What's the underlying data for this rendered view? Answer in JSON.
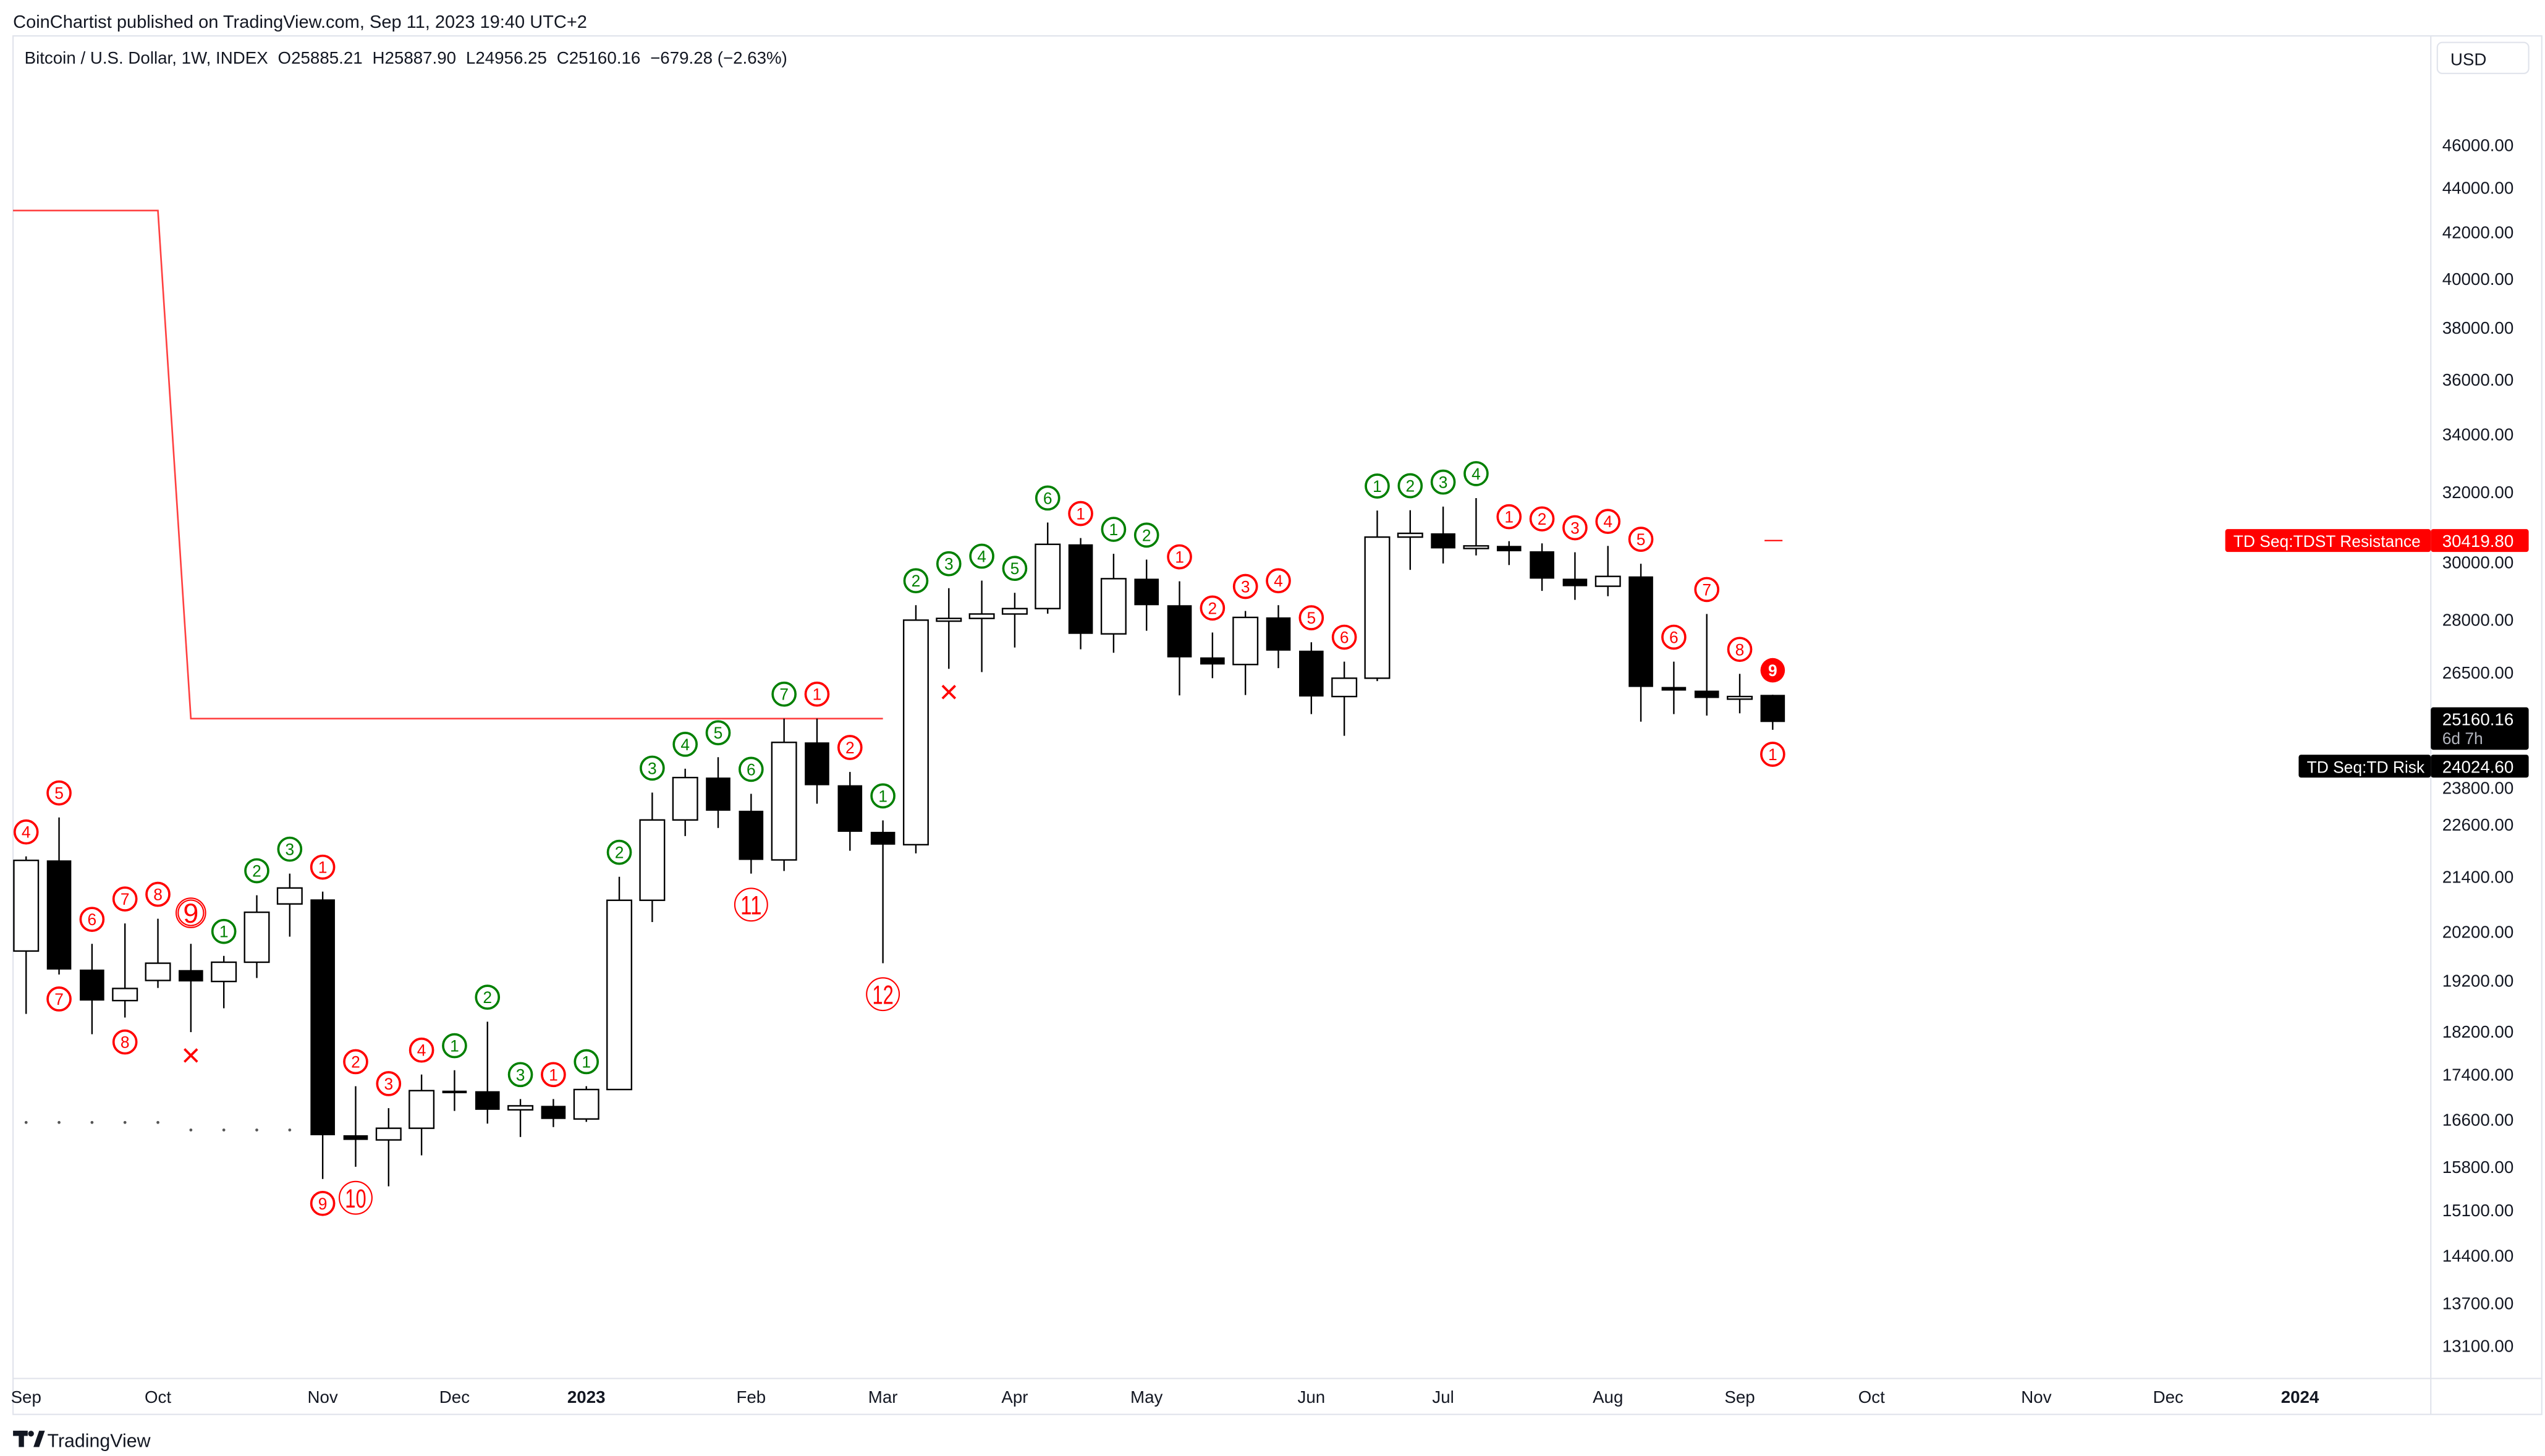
{
  "header": {
    "published": "CoinChartist published on TradingView.com, Sep 11, 2023 19:40 UTC+2",
    "symbol": "Bitcoin / U.S. Dollar, 1W, INDEX",
    "open": "O25885.21",
    "high": "H25887.90",
    "low": "L24956.25",
    "close": "C25160.16",
    "change": "−679.28 (−2.63%)",
    "currency": "USD"
  },
  "footer": {
    "brand": "TradingView"
  },
  "price_labels": {
    "tdst": {
      "name": "TD Seq:TDST Resistance",
      "value": "30419.80",
      "price": 30419.8,
      "color": "#ff0000"
    },
    "last": {
      "value": "25160.16",
      "countdown": "6d 7h",
      "price": 25160.16,
      "color": "#000000"
    },
    "risk": {
      "name": "TD Seq:TD Risk",
      "value": "24024.60",
      "price": 24024.6,
      "color": "#000000"
    }
  },
  "chart_data": {
    "type": "candlestick",
    "interval": "1W",
    "yscale": "log",
    "ylim": [
      12700,
      50500
    ],
    "grid": false,
    "colors": {
      "up_fill": "#ffffff",
      "down_fill": "#000000",
      "wick": "#000000",
      "sell_setup": "#ff0000",
      "buy_setup": "#008000"
    },
    "y_ticks": [
      "46000.00",
      "44000.00",
      "42000.00",
      "40000.00",
      "38000.00",
      "36000.00",
      "34000.00",
      "32000.00",
      "30000.00",
      "28000.00",
      "26500.00",
      "23800.00",
      "22600.00",
      "21400.00",
      "20200.00",
      "19200.00",
      "18200.00",
      "17400.00",
      "16600.00",
      "15800.00",
      "15100.00",
      "14400.00",
      "13700.00",
      "13100.00"
    ],
    "x_labels": [
      {
        "label": "Sep",
        "date": "2022-09-05",
        "bold": false
      },
      {
        "label": "Oct",
        "date": "2022-10-03",
        "bold": false
      },
      {
        "label": "Nov",
        "date": "2022-11-07",
        "bold": false
      },
      {
        "label": "Dec",
        "date": "2022-12-05",
        "bold": false
      },
      {
        "label": "2023",
        "date": "2023-01-02",
        "bold": true
      },
      {
        "label": "Feb",
        "date": "2023-02-06",
        "bold": false
      },
      {
        "label": "Mar",
        "date": "2023-03-06",
        "bold": false
      },
      {
        "label": "Apr",
        "date": "2023-04-03",
        "bold": false
      },
      {
        "label": "May",
        "date": "2023-05-01",
        "bold": false
      },
      {
        "label": "Jun",
        "date": "2023-06-05",
        "bold": false
      },
      {
        "label": "Jul",
        "date": "2023-07-03",
        "bold": false
      },
      {
        "label": "Aug",
        "date": "2023-08-07",
        "bold": false
      },
      {
        "label": "Sep",
        "date": "2023-09-04",
        "bold": false
      },
      {
        "label": "Oct",
        "date": "2023-10-02",
        "bold": false
      },
      {
        "label": "Nov",
        "date": "2023-11-06",
        "bold": false
      },
      {
        "label": "Dec",
        "date": "2023-12-04",
        "bold": false
      },
      {
        "label": "2024",
        "date": "2024-01-01",
        "bold": true
      }
    ],
    "candles": [
      [
        "2022-09-05",
        19800,
        21860,
        18540,
        21770
      ],
      [
        "2022-09-12",
        21770,
        22770,
        19320,
        19420
      ],
      [
        "2022-09-19",
        19420,
        19950,
        18150,
        18800
      ],
      [
        "2022-09-26",
        18800,
        20380,
        18470,
        19040
      ],
      [
        "2022-10-03",
        19200,
        20480,
        19050,
        19550
      ],
      [
        "2022-10-10",
        19410,
        19950,
        18190,
        19180
      ],
      [
        "2022-10-17",
        19180,
        19700,
        18650,
        19570
      ],
      [
        "2022-10-24",
        19570,
        20990,
        19250,
        20620
      ],
      [
        "2022-10-31",
        20800,
        21470,
        20100,
        21150
      ],
      [
        "2022-11-07",
        20900,
        21070,
        15600,
        16330
      ],
      [
        "2022-11-14",
        16330,
        17190,
        15800,
        16250
      ],
      [
        "2022-11-21",
        16250,
        16800,
        15480,
        16450
      ],
      [
        "2022-11-28",
        16450,
        17400,
        15990,
        17110
      ],
      [
        "2022-12-05",
        17110,
        17480,
        16750,
        17090
      ],
      [
        "2022-12-12",
        17100,
        18390,
        16530,
        16770
      ],
      [
        "2022-12-19",
        16770,
        16960,
        16300,
        16840
      ],
      [
        "2022-12-26",
        16840,
        16960,
        16470,
        16610
      ],
      [
        "2023-01-02",
        16610,
        17190,
        16560,
        17130
      ],
      [
        "2023-01-09",
        17130,
        21400,
        17130,
        20880
      ],
      [
        "2023-01-16",
        20880,
        23370,
        20410,
        22710
      ],
      [
        "2023-01-23",
        22710,
        23960,
        22330,
        23740
      ],
      [
        "2023-01-30",
        23740,
        24250,
        22520,
        22930
      ],
      [
        "2023-02-06",
        22930,
        23340,
        21470,
        21780
      ],
      [
        "2023-02-13",
        21780,
        25250,
        21530,
        24630
      ],
      [
        "2023-02-20",
        24630,
        25250,
        23100,
        23550
      ],
      [
        "2023-02-27",
        23550,
        23880,
        21990,
        22430
      ],
      [
        "2023-03-06",
        22430,
        22700,
        19550,
        22130
      ],
      [
        "2023-03-13",
        22130,
        28430,
        21930,
        27990
      ],
      [
        "2023-03-20",
        27960,
        28940,
        26600,
        28040
      ],
      [
        "2023-03-27",
        28040,
        29170,
        26510,
        28170
      ],
      [
        "2023-04-03",
        28170,
        28800,
        27200,
        28330
      ],
      [
        "2023-04-10",
        28330,
        31000,
        28180,
        30300
      ],
      [
        "2023-04-17",
        30300,
        30500,
        27150,
        27590
      ],
      [
        "2023-04-24",
        27590,
        30000,
        27050,
        29230
      ],
      [
        "2023-05-01",
        29230,
        29820,
        27680,
        28430
      ],
      [
        "2023-05-08",
        28430,
        29150,
        25870,
        26920
      ],
      [
        "2023-05-15",
        26920,
        27630,
        26340,
        26720
      ],
      [
        "2023-05-22",
        26720,
        28260,
        25880,
        28070
      ],
      [
        "2023-05-29",
        28070,
        28430,
        26620,
        27110
      ],
      [
        "2023-06-05",
        27110,
        27350,
        25370,
        25840
      ],
      [
        "2023-06-12",
        25840,
        26800,
        24800,
        26340
      ],
      [
        "2023-06-19",
        26340,
        31390,
        26260,
        30530
      ],
      [
        "2023-06-26",
        30530,
        31400,
        29500,
        30650
      ],
      [
        "2023-07-03",
        30650,
        31520,
        29700,
        30170
      ],
      [
        "2023-07-10",
        30170,
        31800,
        29950,
        30250
      ],
      [
        "2023-07-17",
        30250,
        30400,
        29650,
        30080
      ],
      [
        "2023-07-24",
        30080,
        30330,
        28860,
        29230
      ],
      [
        "2023-07-31",
        29230,
        30050,
        28590,
        29000
      ],
      [
        "2023-08-07",
        29000,
        30250,
        28700,
        29300
      ],
      [
        "2023-08-14",
        29300,
        29690,
        25170,
        26100
      ],
      [
        "2023-08-21",
        26100,
        26800,
        25370,
        26000
      ],
      [
        "2023-08-28",
        26000,
        28170,
        25330,
        25800
      ],
      [
        "2023-09-04",
        25800,
        26460,
        25390,
        25840
      ],
      [
        "2023-09-11",
        25885.21,
        25887.9,
        24956.25,
        25160.16
      ]
    ],
    "markers": [
      {
        "date": "2022-09-05",
        "text": "4",
        "color": "red",
        "position": "above",
        "style": "circle"
      },
      {
        "date": "2022-09-12",
        "text": "5",
        "color": "red",
        "position": "above",
        "style": "circle"
      },
      {
        "date": "2022-09-12",
        "text": "7",
        "color": "red",
        "position": "below",
        "style": "circle"
      },
      {
        "date": "2022-09-19",
        "text": "6",
        "color": "red",
        "position": "above",
        "style": "circle"
      },
      {
        "date": "2022-09-26",
        "text": "7",
        "color": "red",
        "position": "above",
        "style": "circle"
      },
      {
        "date": "2022-09-26",
        "text": "8",
        "color": "red",
        "position": "below",
        "style": "circle"
      },
      {
        "date": "2022-10-03",
        "text": "8",
        "color": "red",
        "position": "above",
        "style": "circle"
      },
      {
        "date": "2022-10-10",
        "text": "9",
        "color": "red",
        "position": "above",
        "style": "double"
      },
      {
        "date": "2022-10-10",
        "text": "×",
        "color": "red",
        "position": "below",
        "style": "cross"
      },
      {
        "date": "2022-10-17",
        "text": "1",
        "color": "green",
        "position": "above",
        "style": "circle"
      },
      {
        "date": "2022-10-24",
        "text": "2",
        "color": "green",
        "position": "above",
        "style": "circle"
      },
      {
        "date": "2022-10-31",
        "text": "3",
        "color": "green",
        "position": "above",
        "style": "circle"
      },
      {
        "date": "2022-11-07",
        "text": "1",
        "color": "red",
        "position": "above",
        "style": "circle"
      },
      {
        "date": "2022-11-07",
        "text": "9",
        "color": "red",
        "position": "below",
        "style": "circle"
      },
      {
        "date": "2022-11-14",
        "text": "2",
        "color": "red",
        "position": "above",
        "style": "circle"
      },
      {
        "date": "2022-11-14",
        "text": "10",
        "color": "red",
        "position": "below",
        "style": "big"
      },
      {
        "date": "2022-11-21",
        "text": "3",
        "color": "red",
        "position": "above",
        "style": "circle"
      },
      {
        "date": "2022-11-28",
        "text": "4",
        "color": "red",
        "position": "above",
        "style": "circle"
      },
      {
        "date": "2022-12-05",
        "text": "1",
        "color": "green",
        "position": "above",
        "style": "circle"
      },
      {
        "date": "2022-12-12",
        "text": "2",
        "color": "green",
        "position": "above",
        "style": "circle"
      },
      {
        "date": "2022-12-19",
        "text": "3",
        "color": "green",
        "position": "above",
        "style": "circle"
      },
      {
        "date": "2022-12-26",
        "text": "1",
        "color": "red",
        "position": "above",
        "style": "circle"
      },
      {
        "date": "2023-01-02",
        "text": "1",
        "color": "green",
        "position": "above",
        "style": "circle"
      },
      {
        "date": "2023-01-09",
        "text": "2",
        "color": "green",
        "position": "above",
        "style": "circle"
      },
      {
        "date": "2023-01-16",
        "text": "3",
        "color": "green",
        "position": "above",
        "style": "circle"
      },
      {
        "date": "2023-01-23",
        "text": "4",
        "color": "green",
        "position": "above",
        "style": "circle"
      },
      {
        "date": "2023-01-30",
        "text": "5",
        "color": "green",
        "position": "above",
        "style": "circle"
      },
      {
        "date": "2023-02-06",
        "text": "6",
        "color": "green",
        "position": "above",
        "style": "circle"
      },
      {
        "date": "2023-02-06",
        "text": "11",
        "color": "red",
        "position": "below",
        "style": "big"
      },
      {
        "date": "2023-02-13",
        "text": "7",
        "color": "green",
        "position": "above",
        "style": "circle"
      },
      {
        "date": "2023-02-20",
        "text": "1",
        "color": "red",
        "position": "above",
        "style": "circle"
      },
      {
        "date": "2023-02-27",
        "text": "2",
        "color": "red",
        "position": "above",
        "style": "circle"
      },
      {
        "date": "2023-03-06",
        "text": "1",
        "color": "green",
        "position": "above",
        "style": "circle"
      },
      {
        "date": "2023-03-06",
        "text": "12",
        "color": "red",
        "position": "below",
        "style": "big"
      },
      {
        "date": "2023-03-13",
        "text": "2",
        "color": "green",
        "position": "above",
        "style": "circle"
      },
      {
        "date": "2023-03-20",
        "text": "3",
        "color": "green",
        "position": "above",
        "style": "circle"
      },
      {
        "date": "2023-03-20",
        "text": "×",
        "color": "red",
        "position": "below",
        "style": "cross"
      },
      {
        "date": "2023-03-27",
        "text": "4",
        "color": "green",
        "position": "above",
        "style": "circle"
      },
      {
        "date": "2023-04-03",
        "text": "5",
        "color": "green",
        "position": "above",
        "style": "circle"
      },
      {
        "date": "2023-04-10",
        "text": "6",
        "color": "green",
        "position": "above",
        "style": "circle"
      },
      {
        "date": "2023-04-17",
        "text": "1",
        "color": "red",
        "position": "above",
        "style": "circle"
      },
      {
        "date": "2023-04-24",
        "text": "1",
        "color": "green",
        "position": "above",
        "style": "circle"
      },
      {
        "date": "2023-05-01",
        "text": "2",
        "color": "green",
        "position": "above",
        "style": "circle"
      },
      {
        "date": "2023-05-08",
        "text": "1",
        "color": "red",
        "position": "above",
        "style": "circle"
      },
      {
        "date": "2023-05-15",
        "text": "2",
        "color": "red",
        "position": "above",
        "style": "circle"
      },
      {
        "date": "2023-05-22",
        "text": "3",
        "color": "red",
        "position": "above",
        "style": "circle"
      },
      {
        "date": "2023-05-29",
        "text": "4",
        "color": "red",
        "position": "above",
        "style": "circle"
      },
      {
        "date": "2023-06-05",
        "text": "5",
        "color": "red",
        "position": "above",
        "style": "circle"
      },
      {
        "date": "2023-06-12",
        "text": "6",
        "color": "red",
        "position": "above",
        "style": "circle"
      },
      {
        "date": "2023-06-19",
        "text": "1",
        "color": "green",
        "position": "above",
        "style": "circle"
      },
      {
        "date": "2023-06-26",
        "text": "2",
        "color": "green",
        "position": "above",
        "style": "circle"
      },
      {
        "date": "2023-07-03",
        "text": "3",
        "color": "green",
        "position": "above",
        "style": "circle"
      },
      {
        "date": "2023-07-10",
        "text": "4",
        "color": "green",
        "position": "above",
        "style": "circle"
      },
      {
        "date": "2023-07-17",
        "text": "1",
        "color": "red",
        "position": "above",
        "style": "circle"
      },
      {
        "date": "2023-07-24",
        "text": "2",
        "color": "red",
        "position": "above",
        "style": "circle"
      },
      {
        "date": "2023-07-31",
        "text": "3",
        "color": "red",
        "position": "above",
        "style": "circle"
      },
      {
        "date": "2023-08-07",
        "text": "4",
        "color": "red",
        "position": "above",
        "style": "circle"
      },
      {
        "date": "2023-08-14",
        "text": "5",
        "color": "red",
        "position": "above",
        "style": "circle"
      },
      {
        "date": "2023-08-21",
        "text": "6",
        "color": "red",
        "position": "above",
        "style": "circle"
      },
      {
        "date": "2023-08-28",
        "text": "7",
        "color": "red",
        "position": "above",
        "style": "circle"
      },
      {
        "date": "2023-09-04",
        "text": "8",
        "color": "red",
        "position": "above",
        "style": "circle"
      },
      {
        "date": "2023-09-11",
        "text": "9",
        "color": "red",
        "position": "above",
        "style": "filled"
      },
      {
        "date": "2023-09-11",
        "text": "1",
        "color": "red",
        "position": "below",
        "style": "circle"
      }
    ],
    "tdst_line": {
      "color": "#ff0000",
      "points": [
        [
          "2022-08-29",
          42960
        ],
        [
          "2022-10-03",
          42960
        ],
        [
          "2022-10-10",
          25250
        ],
        [
          "2023-03-06",
          25250
        ]
      ],
      "current": {
        "date": "2023-09-11",
        "price": 30419.8
      }
    },
    "support_dots": [
      [
        "2022-09-05",
        16550
      ],
      [
        "2022-09-12",
        16550
      ],
      [
        "2022-09-19",
        16550
      ],
      [
        "2022-09-26",
        16550
      ],
      [
        "2022-10-03",
        16550
      ],
      [
        "2022-10-10",
        16420
      ],
      [
        "2022-10-17",
        16420
      ],
      [
        "2022-10-24",
        16420
      ],
      [
        "2022-10-31",
        16420
      ]
    ]
  }
}
